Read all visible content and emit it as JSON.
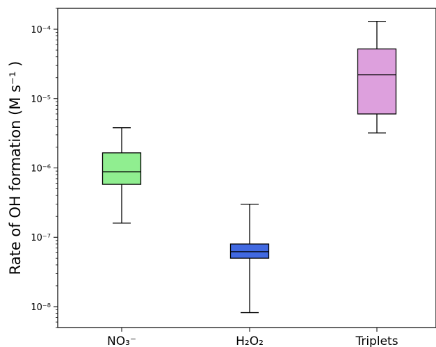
{
  "chart_data": {
    "type": "box",
    "ylabel": "Rate of OH formation (M s⁻¹ )",
    "yscale": "log",
    "ylim": [
      5e-09,
      0.0002
    ],
    "grid": false,
    "y_ticks": [
      {
        "value": 1e-08,
        "label": "10⁻⁸"
      },
      {
        "value": 1e-07,
        "label": "10⁻⁷"
      },
      {
        "value": 1e-06,
        "label": "10⁻⁶"
      },
      {
        "value": 1e-05,
        "label": "10⁻⁵"
      },
      {
        "value": 0.0001,
        "label": "10⁻⁴"
      }
    ],
    "categories": [
      "NO₃⁻",
      "H₂O₂",
      "Triplets"
    ],
    "boxes": [
      {
        "whisker_low": 1.6e-07,
        "q1": 5.8e-07,
        "median": 8.8e-07,
        "q3": 1.65e-06,
        "whisker_high": 3.8e-06,
        "color": "#90ee90"
      },
      {
        "whisker_low": 8.2e-09,
        "q1": 5e-08,
        "median": 6.2e-08,
        "q3": 8e-08,
        "whisker_high": 3e-07,
        "color": "#4169e1"
      },
      {
        "whisker_low": 3.2e-06,
        "q1": 6e-06,
        "median": 2.2e-05,
        "q3": 5.2e-05,
        "whisker_high": 0.00013,
        "color": "#dda0dd"
      }
    ]
  }
}
